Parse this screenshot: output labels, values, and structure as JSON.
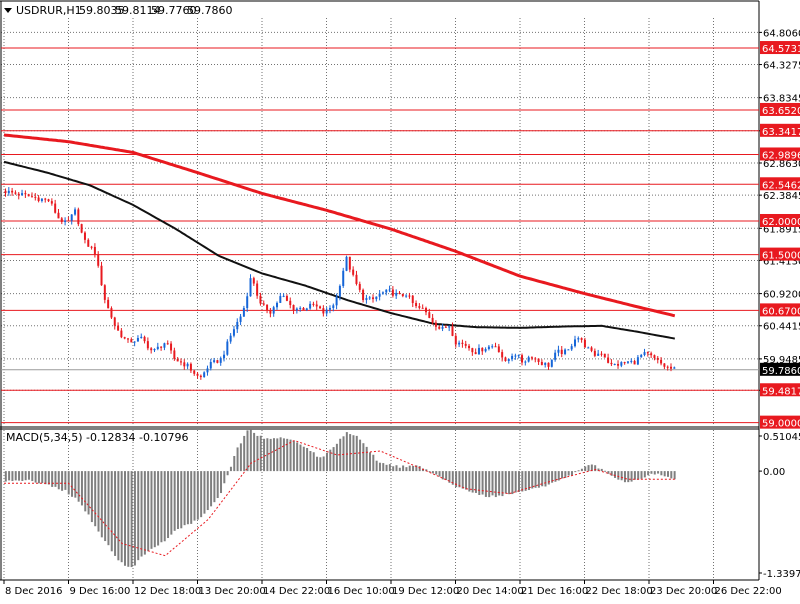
{
  "chart_header": {
    "symbol_label": "USDRUR,H1",
    "ohlc": [
      "59.8035",
      "59.8114",
      "59.7760",
      "59.7860"
    ]
  },
  "chart_data": [
    {
      "type": "candlestick",
      "title": "USDRUR,H1 59.8035 59.8114 59.7760 59.7860",
      "ylim": [
        58.95,
        65.02
      ],
      "price_tick_labels": [
        "64.8060",
        "64.3275",
        "63.8345",
        "63.3417",
        "62.8630",
        "62.3845",
        "61.8915",
        "61.4130",
        "60.9200",
        "60.4415",
        "59.9485",
        "59.4817"
      ],
      "x_tick_labels": [
        "8 Dec 2016",
        "9 Dec 16:00",
        "12 Dec 18:00",
        "13 Dec 20:00",
        "14 Dec 22:00",
        "16 Dec 10:00",
        "19 Dec 12:00",
        "20 Dec 14:00",
        "21 Dec 16:00",
        "22 Dec 18:00",
        "23 Dec 20:00",
        "26 Dec 22:00"
      ],
      "grid": true,
      "current_price": 59.786,
      "current_price_label": "59.7860",
      "horizontal_levels": [
        {
          "value": 64.5731,
          "label": "64.5731"
        },
        {
          "value": 63.652,
          "label": "63.6520"
        },
        {
          "value": 63.3417,
          "label": "63.3417"
        },
        {
          "value": 62.9896,
          "label": "62.9896"
        },
        {
          "value": 62.5462,
          "label": "62.5462"
        },
        {
          "value": 62.0,
          "label": "62.0000"
        },
        {
          "value": 61.5,
          "label": "61.5000"
        },
        {
          "value": 60.67,
          "label": "60.6700"
        },
        {
          "value": 59.4817,
          "label": "59.4817"
        },
        {
          "value": 59.0,
          "label": "59.0000"
        }
      ],
      "price_path": [
        [
          0,
          62.45
        ],
        [
          1.5,
          62.35
        ],
        [
          2.2,
          62.3
        ],
        [
          2.6,
          62.05
        ],
        [
          3.0,
          61.95
        ],
        [
          3.4,
          62.15
        ],
        [
          3.8,
          61.7
        ],
        [
          4.3,
          61.55
        ],
        [
          4.8,
          60.8
        ],
        [
          5.3,
          60.4
        ],
        [
          5.8,
          60.2
        ],
        [
          6.5,
          60.25
        ],
        [
          7.0,
          60.05
        ],
        [
          7.6,
          60.2
        ],
        [
          8.0,
          59.95
        ],
        [
          8.6,
          59.85
        ],
        [
          9.2,
          59.65
        ],
        [
          9.6,
          59.85
        ],
        [
          10.2,
          59.95
        ],
        [
          10.7,
          60.35
        ],
        [
          11.2,
          60.65
        ],
        [
          11.6,
          61.2
        ],
        [
          12.0,
          60.75
        ],
        [
          12.5,
          60.65
        ],
        [
          13.0,
          60.9
        ],
        [
          13.5,
          60.7
        ],
        [
          14.0,
          60.7
        ],
        [
          14.5,
          60.75
        ],
        [
          15.0,
          60.62
        ],
        [
          15.5,
          60.8
        ],
        [
          16.0,
          61.45
        ],
        [
          16.4,
          61.1
        ],
        [
          16.8,
          60.85
        ],
        [
          17.2,
          60.82
        ],
        [
          17.6,
          60.92
        ],
        [
          18.0,
          60.95
        ],
        [
          18.5,
          60.88
        ],
        [
          18.8,
          60.92
        ],
        [
          19.2,
          60.72
        ],
        [
          19.6,
          60.68
        ],
        [
          20.0,
          60.52
        ],
        [
          20.4,
          60.38
        ],
        [
          20.8,
          60.45
        ],
        [
          21.1,
          60.2
        ],
        [
          21.6,
          60.15
        ],
        [
          22.0,
          60.05
        ],
        [
          22.5,
          60.12
        ],
        [
          23.0,
          60.15
        ],
        [
          23.4,
          59.88
        ],
        [
          23.8,
          60.05
        ],
        [
          24.2,
          59.9
        ],
        [
          24.6,
          60.0
        ],
        [
          25.0,
          59.9
        ],
        [
          25.4,
          59.85
        ],
        [
          25.8,
          60.05
        ],
        [
          26.3,
          60.05
        ],
        [
          26.7,
          60.3
        ],
        [
          27.1,
          60.15
        ],
        [
          27.5,
          60.0
        ],
        [
          27.9,
          60.05
        ],
        [
          28.3,
          59.85
        ],
        [
          28.7,
          59.87
        ],
        [
          29.1,
          59.9
        ],
        [
          29.4,
          59.9
        ],
        [
          29.8,
          60.02
        ],
        [
          30.1,
          60.0
        ],
        [
          30.4,
          59.93
        ],
        [
          30.8,
          59.84
        ],
        [
          31.2,
          59.79
        ]
      ],
      "series": [
        {
          "type": "line",
          "color": "#e8191f",
          "points": [
            [
              0,
              63.28
            ],
            [
              3,
              63.18
            ],
            [
              6,
              63.02
            ],
            [
              9,
              62.72
            ],
            [
              12,
              62.41
            ],
            [
              15,
              62.16
            ],
            [
              18,
              61.88
            ],
            [
              21,
              61.55
            ],
            [
              24,
              61.18
            ],
            [
              27,
              60.92
            ],
            [
              29.5,
              60.72
            ],
            [
              31.2,
              60.59
            ]
          ]
        },
        {
          "type": "line",
          "color": "#111111",
          "points": [
            [
              0,
              62.88
            ],
            [
              2,
              62.72
            ],
            [
              4,
              62.53
            ],
            [
              6,
              62.24
            ],
            [
              8,
              61.88
            ],
            [
              10,
              61.48
            ],
            [
              12,
              61.22
            ],
            [
              14,
              61.04
            ],
            [
              16,
              60.82
            ],
            [
              18,
              60.63
            ],
            [
              20,
              60.47
            ],
            [
              22,
              60.42
            ],
            [
              24,
              60.41
            ],
            [
              26,
              60.43
            ],
            [
              27.8,
              60.44
            ],
            [
              29.5,
              60.35
            ],
            [
              31.2,
              60.25
            ]
          ]
        }
      ]
    },
    {
      "type": "bar",
      "title": "MACD(5,34,5) -0.12834 -0.10796",
      "ylim": [
        -1.33974,
        0.51045
      ],
      "y_tick_labels": [
        "0.51045",
        "0.00",
        "-1.33974"
      ],
      "zero_label": "0.00",
      "histogram_key": [
        [
          0,
          -0.12
        ],
        [
          1.2,
          -0.12
        ],
        [
          2.0,
          -0.18
        ],
        [
          2.8,
          -0.25
        ],
        [
          3.5,
          -0.4
        ],
        [
          4.3,
          -0.75
        ],
        [
          5.2,
          -1.1
        ],
        [
          5.8,
          -1.22
        ],
        [
          6.4,
          -1.05
        ],
        [
          7.2,
          -0.9
        ],
        [
          8.0,
          -0.72
        ],
        [
          9.0,
          -0.6
        ],
        [
          10.0,
          -0.28
        ],
        [
          10.8,
          0.3
        ],
        [
          11.3,
          0.52
        ],
        [
          12.0,
          0.4
        ],
        [
          13.0,
          0.42
        ],
        [
          14.0,
          0.3
        ],
        [
          14.6,
          0.15
        ],
        [
          15.2,
          0.3
        ],
        [
          15.9,
          0.48
        ],
        [
          16.5,
          0.4
        ],
        [
          17.3,
          0.12
        ],
        [
          18.3,
          0.05
        ],
        [
          19.2,
          0.08
        ],
        [
          20.0,
          -0.05
        ],
        [
          21.0,
          -0.2
        ],
        [
          22.5,
          -0.32
        ],
        [
          23.5,
          -0.28
        ],
        [
          25.0,
          -0.2
        ],
        [
          26.3,
          -0.05
        ],
        [
          27.2,
          0.08
        ],
        [
          27.8,
          0.02
        ],
        [
          28.8,
          -0.15
        ],
        [
          29.5,
          -0.1
        ],
        [
          30.2,
          -0.03
        ],
        [
          30.8,
          -0.08
        ],
        [
          31.2,
          -0.12
        ]
      ],
      "signal_key": [
        [
          0,
          -0.15
        ],
        [
          3,
          -0.15
        ],
        [
          5.5,
          -0.9
        ],
        [
          7.5,
          -1.05
        ],
        [
          9.5,
          -0.6
        ],
        [
          11.5,
          0.1
        ],
        [
          13.5,
          0.38
        ],
        [
          15.5,
          0.2
        ],
        [
          17.5,
          0.25
        ],
        [
          19.5,
          0.02
        ],
        [
          21.5,
          -0.22
        ],
        [
          23.5,
          -0.28
        ],
        [
          25.5,
          -0.12
        ],
        [
          27.5,
          0.02
        ],
        [
          29,
          -0.1
        ],
        [
          31.2,
          -0.1
        ]
      ]
    }
  ]
}
